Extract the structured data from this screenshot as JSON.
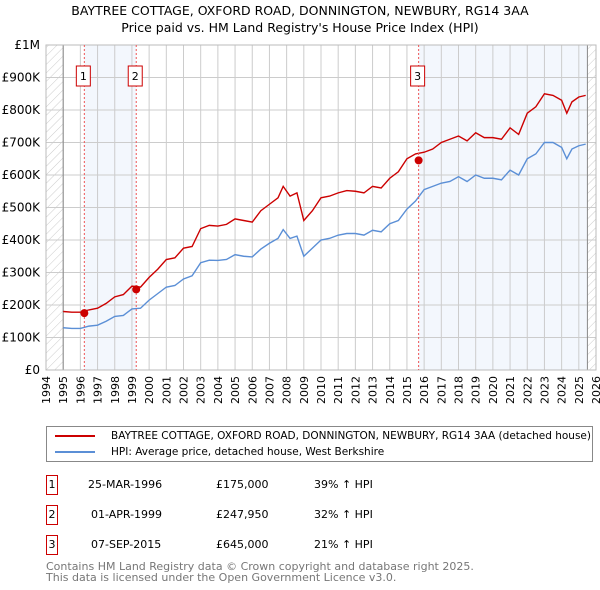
{
  "title": "BAYTREE COTTAGE, OXFORD ROAD, DONNINGTON, NEWBURY, RG14 3AA",
  "subtitle": "Price paid vs. HM Land Registry's House Price Index (HPI)",
  "chart_data": {
    "type": "line",
    "xlim": [
      1994,
      2026
    ],
    "ylim": [
      0,
      1000000
    ],
    "x_ticks": [
      "1994",
      "1995",
      "1996",
      "1997",
      "1998",
      "1999",
      "2000",
      "2001",
      "2002",
      "2003",
      "2004",
      "2005",
      "2006",
      "2007",
      "2008",
      "2009",
      "2010",
      "2011",
      "2012",
      "2013",
      "2014",
      "2015",
      "2016",
      "2017",
      "2018",
      "2019",
      "2020",
      "2021",
      "2022",
      "2023",
      "2024",
      "2025",
      "2026"
    ],
    "y_ticks": [
      {
        "v": 0,
        "label": "£0"
      },
      {
        "v": 100000,
        "label": "£100K"
      },
      {
        "v": 200000,
        "label": "£200K"
      },
      {
        "v": 300000,
        "label": "£300K"
      },
      {
        "v": 400000,
        "label": "£400K"
      },
      {
        "v": 500000,
        "label": "£500K"
      },
      {
        "v": 600000,
        "label": "£600K"
      },
      {
        "v": 700000,
        "label": "£700K"
      },
      {
        "v": 800000,
        "label": "£800K"
      },
      {
        "v": 900000,
        "label": "£900K"
      },
      {
        "v": 1000000,
        "label": "£1M"
      }
    ],
    "grid": true,
    "series": [
      {
        "name": "BAYTREE COTTAGE, OXFORD ROAD, DONNINGTON, NEWBURY, RG14 3AA (detached house)",
        "color": "#cc0000",
        "x": [
          1995,
          1995.5,
          1996,
          1996.5,
          1997,
          1997.5,
          1998,
          1998.5,
          1999,
          1999.5,
          2000,
          2000.5,
          2001,
          2001.5,
          2002,
          2002.5,
          2003,
          2003.5,
          2004,
          2004.5,
          2005,
          2005.5,
          2006,
          2006.5,
          2007,
          2007.5,
          2007.8,
          2008.2,
          2008.6,
          2009,
          2009.5,
          2010,
          2010.5,
          2011,
          2011.5,
          2012,
          2012.5,
          2013,
          2013.5,
          2014,
          2014.5,
          2015,
          2015.5,
          2016,
          2016.5,
          2017,
          2017.5,
          2018,
          2018.5,
          2019,
          2019.5,
          2020,
          2020.5,
          2021,
          2021.5,
          2022,
          2022.5,
          2023,
          2023.5,
          2024,
          2024.3,
          2024.6,
          2025,
          2025.4
        ],
        "y": [
          180000,
          178000,
          178000,
          185000,
          190000,
          205000,
          225000,
          232000,
          258000,
          255000,
          285000,
          310000,
          340000,
          345000,
          375000,
          380000,
          435000,
          445000,
          443000,
          448000,
          465000,
          460000,
          455000,
          490000,
          510000,
          530000,
          565000,
          535000,
          545000,
          460000,
          490000,
          530000,
          535000,
          545000,
          552000,
          550000,
          545000,
          565000,
          560000,
          590000,
          610000,
          650000,
          665000,
          670000,
          680000,
          700000,
          710000,
          720000,
          705000,
          730000,
          715000,
          715000,
          710000,
          745000,
          725000,
          790000,
          810000,
          850000,
          845000,
          830000,
          790000,
          825000,
          840000,
          845000
        ]
      },
      {
        "name": "HPI: Average price, detached house, West Berkshire",
        "color": "#5b8fd6",
        "x": [
          1995,
          1995.5,
          1996,
          1996.5,
          1997,
          1997.5,
          1998,
          1998.5,
          1999,
          1999.5,
          2000,
          2000.5,
          2001,
          2001.5,
          2002,
          2002.5,
          2003,
          2003.5,
          2004,
          2004.5,
          2005,
          2005.5,
          2006,
          2006.5,
          2007,
          2007.5,
          2007.8,
          2008.2,
          2008.6,
          2009,
          2009.5,
          2010,
          2010.5,
          2011,
          2011.5,
          2012,
          2012.5,
          2013,
          2013.5,
          2014,
          2014.5,
          2015,
          2015.5,
          2016,
          2016.5,
          2017,
          2017.5,
          2018,
          2018.5,
          2019,
          2019.5,
          2020,
          2020.5,
          2021,
          2021.5,
          2022,
          2022.5,
          2023,
          2023.5,
          2024,
          2024.3,
          2024.6,
          2025,
          2025.4
        ],
        "y": [
          130000,
          128000,
          128000,
          135000,
          138000,
          150000,
          165000,
          168000,
          188000,
          190000,
          215000,
          235000,
          255000,
          260000,
          280000,
          290000,
          330000,
          338000,
          337000,
          340000,
          355000,
          350000,
          348000,
          372000,
          390000,
          405000,
          432000,
          405000,
          412000,
          350000,
          375000,
          400000,
          405000,
          415000,
          420000,
          420000,
          415000,
          430000,
          425000,
          450000,
          460000,
          495000,
          520000,
          555000,
          565000,
          575000,
          580000,
          595000,
          580000,
          600000,
          590000,
          590000,
          585000,
          615000,
          600000,
          650000,
          665000,
          700000,
          700000,
          685000,
          650000,
          680000,
          690000,
          695000
        ]
      }
    ],
    "sales": [
      {
        "label": "1",
        "x": 1996.23,
        "y": 175000,
        "date": "25-MAR-1996",
        "price": "£175,000",
        "hpi": "39% ↑ HPI"
      },
      {
        "label": "2",
        "x": 1999.25,
        "y": 247950,
        "date": "01-APR-1999",
        "price": "£247,950",
        "hpi": "32% ↑ HPI"
      },
      {
        "label": "3",
        "x": 2015.68,
        "y": 645000,
        "date": "07-SEP-2015",
        "price": "£645,000",
        "hpi": "21% ↑ HPI"
      }
    ],
    "data_end": 2025.5
  },
  "footer": [
    "Contains HM Land Registry data © Crown copyright and database right 2025.",
    "This data is licensed under the Open Government Licence v3.0."
  ]
}
